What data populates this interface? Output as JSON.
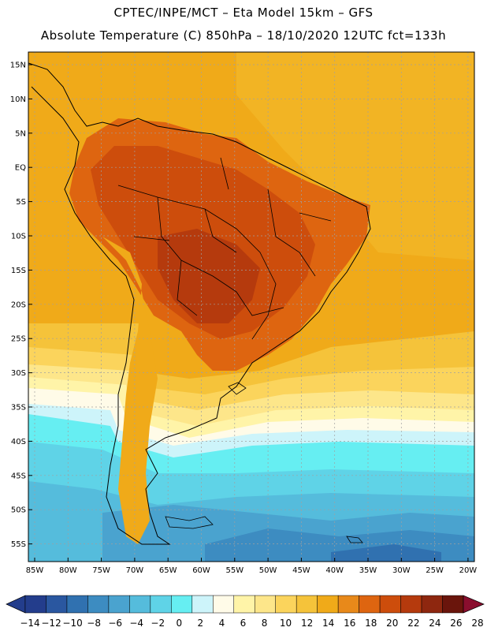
{
  "header": {
    "title_line1": "CPTEC/INPE/MCT –  Eta Model 15km – GFS",
    "title_line2": "Absolute Temperature (C) 850hPa – 18/10/2020 12UTC fct=133h"
  },
  "map": {
    "lat_labels": [
      "15N",
      "10N",
      "5N",
      "EQ",
      "5S",
      "10S",
      "15S",
      "20S",
      "25S",
      "30S",
      "35S",
      "40S",
      "45S",
      "50S",
      "55S"
    ],
    "lon_labels": [
      "85W",
      "80W",
      "75W",
      "70W",
      "65W",
      "60W",
      "55W",
      "50W",
      "45W",
      "40W",
      "35W",
      "30W",
      "25W",
      "20W"
    ]
  },
  "colorbar": {
    "labels": [
      "-14",
      "-12",
      "-10",
      "-8",
      "-6",
      "-4",
      "-2",
      "0",
      "2",
      "4",
      "6",
      "8",
      "10",
      "12",
      "14",
      "16",
      "18",
      "20",
      "22",
      "24",
      "26",
      "28"
    ],
    "colors": [
      "#233d8c",
      "#2a57a0",
      "#3071b0",
      "#3d8cc1",
      "#4aa3cf",
      "#55bcdc",
      "#5fd3e7",
      "#66eef2",
      "#cdf4fa",
      "#fffbe8",
      "#fff4a8",
      "#fde68a",
      "#fbd45c",
      "#f5c33a",
      "#f0aa19",
      "#e8891a",
      "#de6510",
      "#cd4d0c",
      "#b53a0d",
      "#8e270f",
      "#6a150c",
      "#8a0e2e"
    ]
  }
}
